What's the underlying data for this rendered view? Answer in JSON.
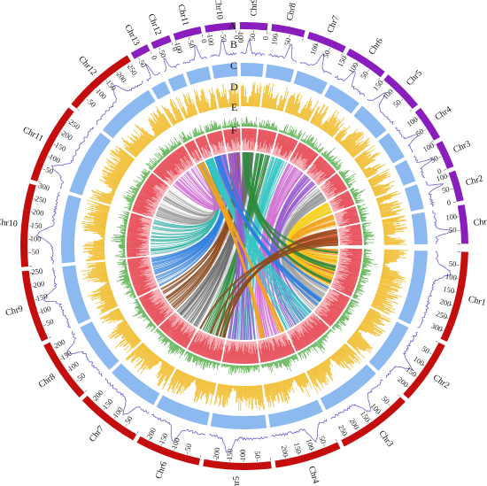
{
  "track_labels": [
    "A",
    "B",
    "C",
    "D",
    "E",
    "F"
  ],
  "genomes": [
    {
      "side": "right",
      "color": "#c40d0d",
      "chromosomes": [
        {
          "name": "Chr1",
          "length": 330
        },
        {
          "name": "Chr2",
          "length": 230
        },
        {
          "name": "Chr3",
          "length": 270
        },
        {
          "name": "Chr4",
          "length": 240
        },
        {
          "name": "Chr5",
          "length": 245
        },
        {
          "name": "Chr6",
          "length": 235
        },
        {
          "name": "Chr7",
          "length": 230
        },
        {
          "name": "Chr8",
          "length": 225
        },
        {
          "name": "Chr9",
          "length": 260
        },
        {
          "name": "Chr10",
          "length": 300
        },
        {
          "name": "Chr11",
          "length": 290
        },
        {
          "name": "Chr12",
          "length": 265
        }
      ]
    },
    {
      "side": "left",
      "color": "#8a1dbd",
      "chromosomes": [
        {
          "name": "Chr13",
          "length": 65
        },
        {
          "name": "Chr12",
          "length": 70
        },
        {
          "name": "Chr11",
          "length": 100
        },
        {
          "name": "Chr10",
          "length": 110
        },
        {
          "name": "Chr9",
          "length": 100
        },
        {
          "name": "Chr8",
          "length": 120
        },
        {
          "name": "Chr7",
          "length": 140
        },
        {
          "name": "Chr6",
          "length": 150
        },
        {
          "name": "Chr5",
          "length": 150
        },
        {
          "name": "Chr4",
          "length": 125
        },
        {
          "name": "Chr3",
          "length": 100
        },
        {
          "name": "Chr2",
          "length": 110
        },
        {
          "name": "Chr1",
          "length": 140
        }
      ]
    }
  ],
  "tracks": [
    {
      "id": "B",
      "type": "line",
      "color": "#6a5fcf"
    },
    {
      "id": "C",
      "type": "area",
      "color": "#7fb2ee"
    },
    {
      "id": "D",
      "type": "histogram",
      "color": "#f2c13b"
    },
    {
      "id": "E",
      "type": "histogram",
      "color": "#4aa83c"
    },
    {
      "id": "F",
      "type": "heatmap",
      "color": "#e8555f"
    }
  ],
  "link_colors": [
    "#e34a1a",
    "#f2a31c",
    "#f7d21a",
    "#9b9b9b",
    "#2e8b3e",
    "#37c6c6",
    "#9b59d0",
    "#d36bd6",
    "#8b4a1e",
    "#2d7fe0",
    "#33b4a8",
    "#c8c8c8",
    "#6b6b6b"
  ]
}
